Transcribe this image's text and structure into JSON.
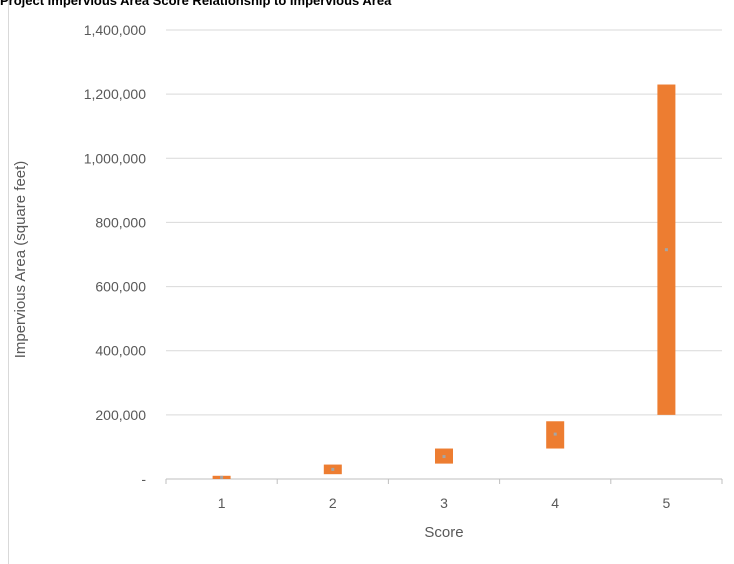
{
  "chart_data": {
    "type": "bar",
    "subtype": "floating-range",
    "title": "Project Impervious Area Score Relationship to Impervious Area",
    "xlabel": "Score",
    "ylabel": "Impervious Area (square feet)",
    "categories": [
      "1",
      "2",
      "3",
      "4",
      "5"
    ],
    "series": [
      {
        "low": [
          0,
          15000,
          48000,
          95000,
          200000
        ],
        "high": [
          10000,
          45000,
          95000,
          180000,
          1230000
        ],
        "mid": [
          5000,
          30000,
          70000,
          140000,
          715000
        ],
        "color": "#ED7D31"
      }
    ],
    "ylim": [
      0,
      1400000
    ],
    "yticks": [
      0,
      200000,
      400000,
      600000,
      800000,
      1000000,
      1200000,
      1400000
    ],
    "ytick_labels": [
      "-",
      "200,000",
      "400,000",
      "600,000",
      "800,000",
      "1,000,000",
      "1,200,000",
      "1,400,000"
    ],
    "grid": true,
    "legend": "none",
    "colors": {
      "bar": "#ED7D31",
      "gridline": "#D9D9D9",
      "axis": "#BFBFBF",
      "text": "#595959"
    }
  }
}
